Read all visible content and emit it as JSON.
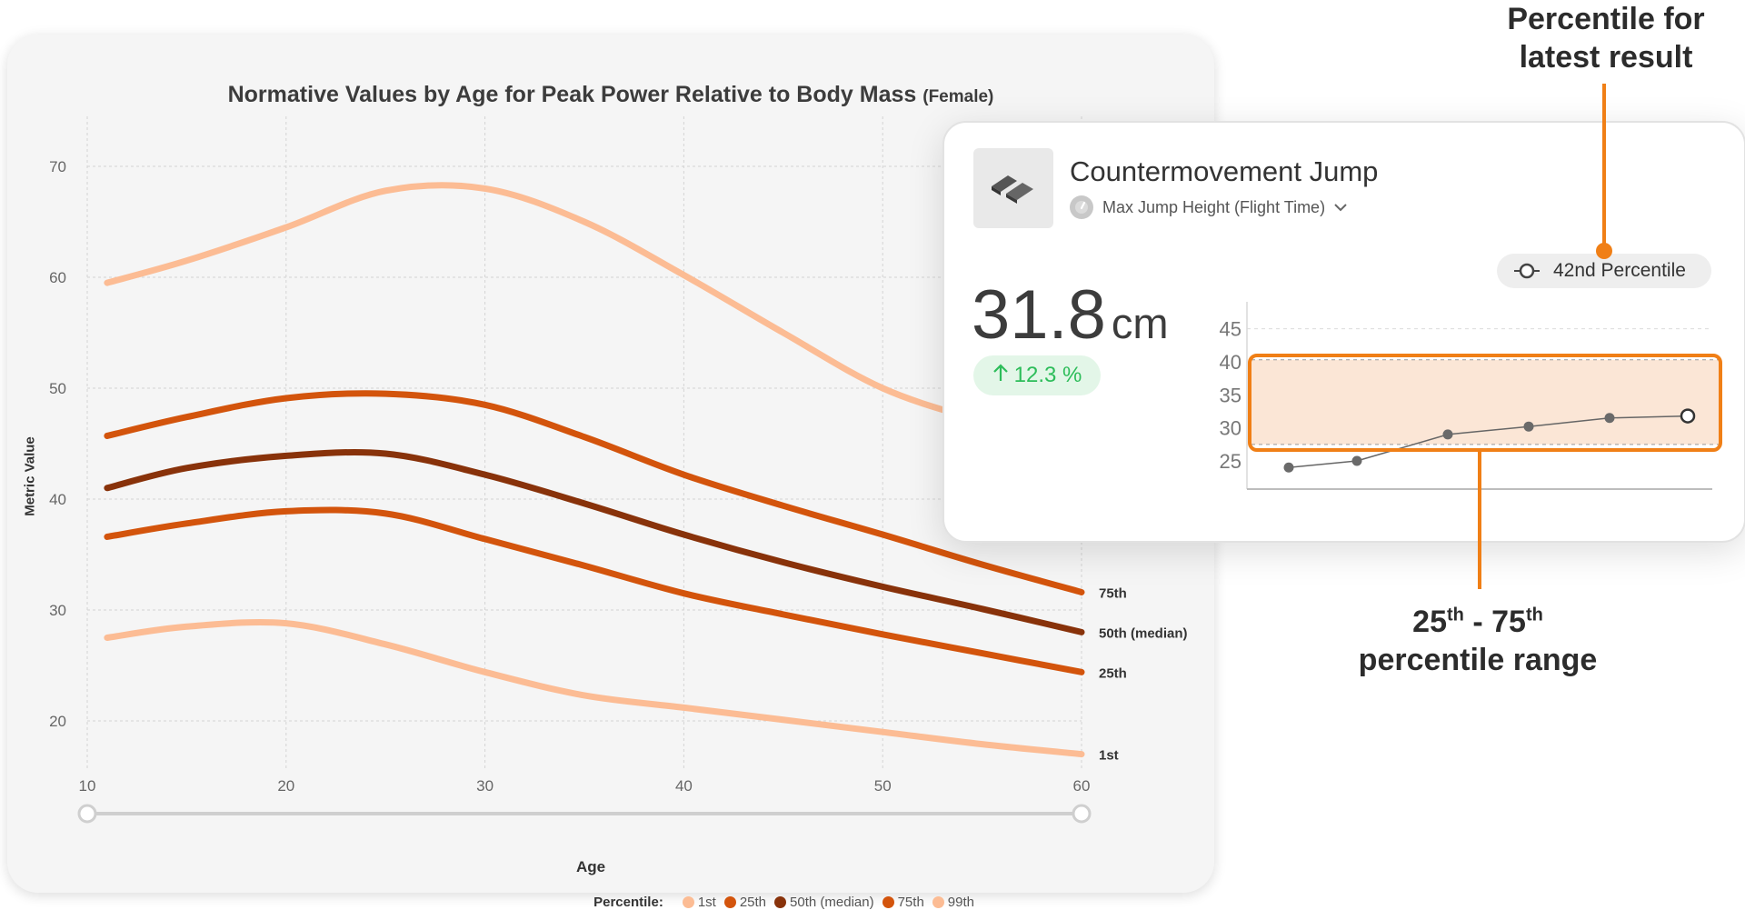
{
  "chart_data": [
    {
      "type": "line",
      "title": "Normative Values by Age for Peak Power Relative to Body Mass",
      "subtitle": "(Female)",
      "xlabel": "Age",
      "ylabel": "Metric Value",
      "xlim": [
        10,
        60
      ],
      "ylim": [
        15,
        75
      ],
      "xticks": [
        10,
        20,
        30,
        40,
        50,
        60
      ],
      "yticks": [
        20,
        30,
        40,
        50,
        60,
        70
      ],
      "grid": true,
      "legend_title": "Percentile:",
      "legend_position": "bottom-right",
      "x": [
        11,
        15,
        20,
        25,
        30,
        35,
        40,
        45,
        50,
        55,
        60
      ],
      "series": [
        {
          "name": "1st",
          "label": "1st",
          "color": "#fcbc94",
          "values": [
            27.5,
            28.5,
            28.8,
            26.9,
            24.4,
            22.3,
            21.2,
            20.1,
            19.0,
            17.9,
            17.0
          ]
        },
        {
          "name": "25th",
          "label": "25th",
          "color": "#d3540c",
          "values": [
            36.6,
            37.8,
            38.9,
            38.7,
            36.4,
            34.0,
            31.5,
            29.6,
            27.8,
            26.1,
            24.4
          ]
        },
        {
          "name": "50th (median)",
          "label": "50th (median)",
          "color": "#88320a",
          "values": [
            41.0,
            42.8,
            43.9,
            44.1,
            42.2,
            39.6,
            36.8,
            34.3,
            32.1,
            30.1,
            28.0
          ]
        },
        {
          "name": "75th",
          "label": "75th",
          "color": "#d3540c",
          "values": [
            45.7,
            47.4,
            49.1,
            49.5,
            48.5,
            45.6,
            42.2,
            39.4,
            36.8,
            34.1,
            31.6
          ]
        },
        {
          "name": "99th",
          "label": "",
          "color": "#fcbc94",
          "values": [
            59.5,
            61.5,
            64.5,
            67.8,
            68.0,
            65.0,
            60.2,
            55.0,
            50.0,
            47.0,
            44.5
          ]
        }
      ],
      "range_slider": {
        "min": 10,
        "max": 60
      }
    },
    {
      "type": "line",
      "ylim": [
        22,
        48
      ],
      "yticks": [
        25,
        30,
        35,
        40,
        45
      ],
      "band": [
        27.5,
        40.3
      ],
      "values": [
        24.0,
        25.0,
        29.0,
        30.2,
        31.5,
        31.8
      ],
      "color": "#666666"
    }
  ],
  "card": {
    "test_name": "Countermovement Jump",
    "metric": "Max Jump Height (Flight Time)",
    "value": "31.8",
    "unit": "cm",
    "change": "12.3 %",
    "percentile": "42nd Percentile"
  },
  "annotations": {
    "top_line1": "Percentile for",
    "top_line2": "latest result",
    "bottom_line1_a": "25",
    "bottom_line1_a_sup": "th",
    "bottom_line1_sep": " - ",
    "bottom_line1_b": "75",
    "bottom_line1_b_sup": "th",
    "bottom_line2": "percentile range"
  },
  "colors": {
    "accent": "#f07f16",
    "band_fill": "#fbe6d6",
    "positive": "#2dbd5a"
  },
  "icons": {
    "test": "force-plates-icon",
    "metric": "gauge-icon",
    "dropdown": "chevron-down-icon",
    "percentile": "target-circle-icon",
    "change": "arrow-up-icon"
  }
}
